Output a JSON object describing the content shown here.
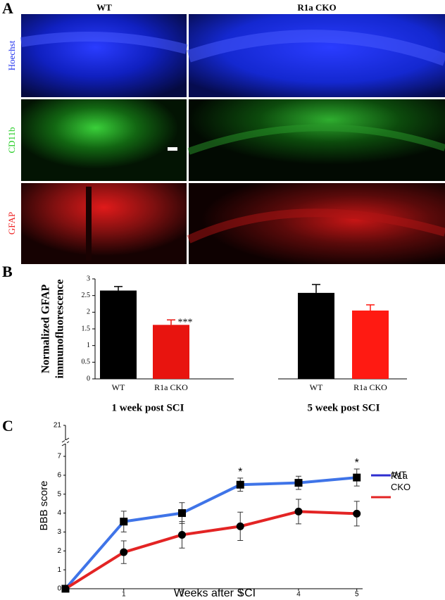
{
  "panel_a": {
    "label": "A",
    "columns": [
      "WT",
      "R1a CKO"
    ],
    "rows": [
      "Hoechst",
      "CD11b",
      "GFAP"
    ]
  },
  "chart_data": [
    {
      "type": "bar",
      "panel_label": "B",
      "ylabel": [
        "Normalized GFAP",
        "immunofluorescence"
      ],
      "groups": [
        "1 week post SCI",
        "5 week post SCI"
      ],
      "categories": [
        "WT",
        "R1a CKO",
        "WT",
        "R1a CKO"
      ],
      "values": [
        2.65,
        1.62,
        2.58,
        2.05
      ],
      "errors": [
        0.12,
        0.15,
        0.25,
        0.17
      ],
      "value_annotations": [
        null,
        "***",
        null,
        null
      ],
      "colors": [
        "#000000",
        "#e8140f",
        "#000000",
        "#ff1a12"
      ],
      "ylim": [
        0,
        3
      ],
      "yticks": [
        0,
        0.5,
        1,
        1.5,
        2,
        2.5,
        3
      ]
    },
    {
      "type": "line",
      "panel_label": "C",
      "xlabel": "Weeks after SCI",
      "ylabel": "BBB score",
      "x": [
        0,
        1,
        2,
        3,
        4,
        5
      ],
      "xlim": [
        0,
        5.1
      ],
      "xticks": [
        1,
        2,
        3,
        4,
        5
      ],
      "ylim": [
        0,
        7
      ],
      "yticks": [
        0,
        1,
        2,
        3,
        4,
        5,
        6,
        7
      ],
      "y_break_tick": 21,
      "series": [
        {
          "name": "WT",
          "color": "#3f74e8",
          "legend_color": "#2e2ed0",
          "marker": "square",
          "values": [
            0,
            3.55,
            4.0,
            5.5,
            5.6,
            5.88
          ],
          "errors": [
            0,
            0.55,
            0.55,
            0.35,
            0.35,
            0.45
          ],
          "value_annotations": [
            null,
            null,
            null,
            "*",
            null,
            "*"
          ]
        },
        {
          "name": "R1a CKO",
          "color": "#e32424",
          "legend_color": "#e32424",
          "marker": "circle",
          "values": [
            0,
            1.93,
            2.85,
            3.3,
            4.08,
            3.97
          ],
          "errors": [
            0,
            0.6,
            0.7,
            0.75,
            0.65,
            0.65
          ],
          "value_annotations": [
            null,
            null,
            null,
            null,
            null,
            null
          ]
        }
      ]
    }
  ]
}
